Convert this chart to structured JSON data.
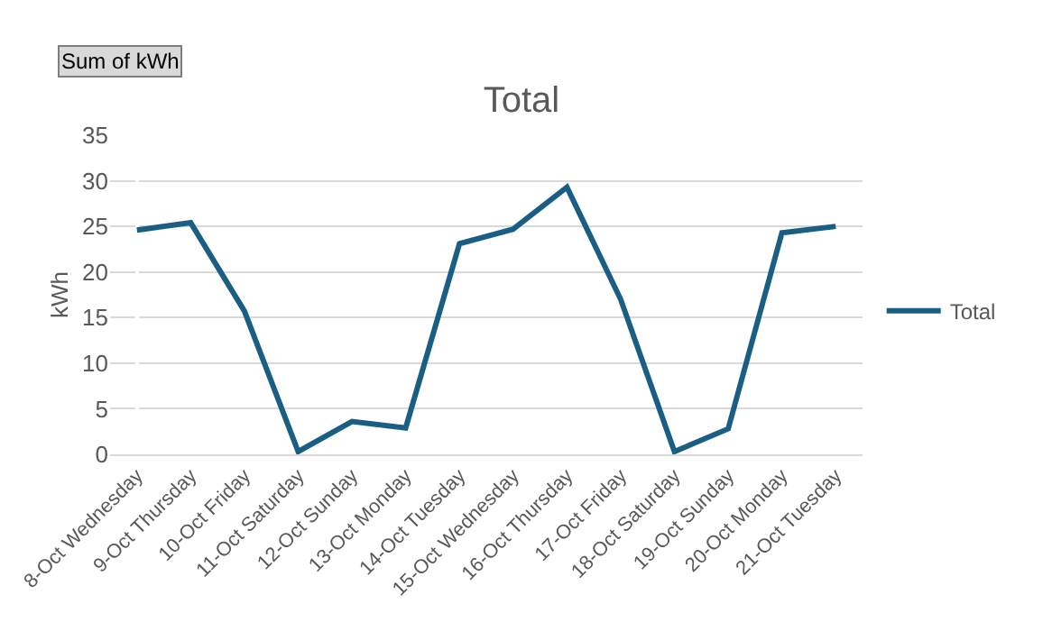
{
  "chart_data": {
    "type": "line",
    "title": "Total",
    "ylabel": "kWh",
    "annotations": [
      "Sum of kWh"
    ],
    "categories": [
      "8-Oct Wednesday",
      "9-Oct Thursday",
      "10-Oct Friday",
      "11-Oct Saturday",
      "12-Oct Sunday",
      "13-Oct Monday",
      "14-Oct Tuesday",
      "15-Oct Wednesday",
      "16-Oct Thursday",
      "17-Oct Friday",
      "18-Oct Saturday",
      "19-Oct Sunday",
      "20-Oct Monday",
      "21-Oct Tuesday"
    ],
    "series": [
      {
        "name": "Total",
        "color": "#1b5e84",
        "values": [
          24.6,
          25.4,
          15.7,
          0.3,
          3.6,
          2.9,
          23.1,
          24.7,
          29.3,
          17.0,
          0.3,
          2.8,
          24.3,
          25.0
        ]
      }
    ],
    "ylim": [
      0,
      35
    ],
    "yticks": [
      0,
      5,
      10,
      15,
      20,
      25,
      30,
      35
    ],
    "grid": "y",
    "legend": "right",
    "marker": "none",
    "line_style": "solid"
  }
}
